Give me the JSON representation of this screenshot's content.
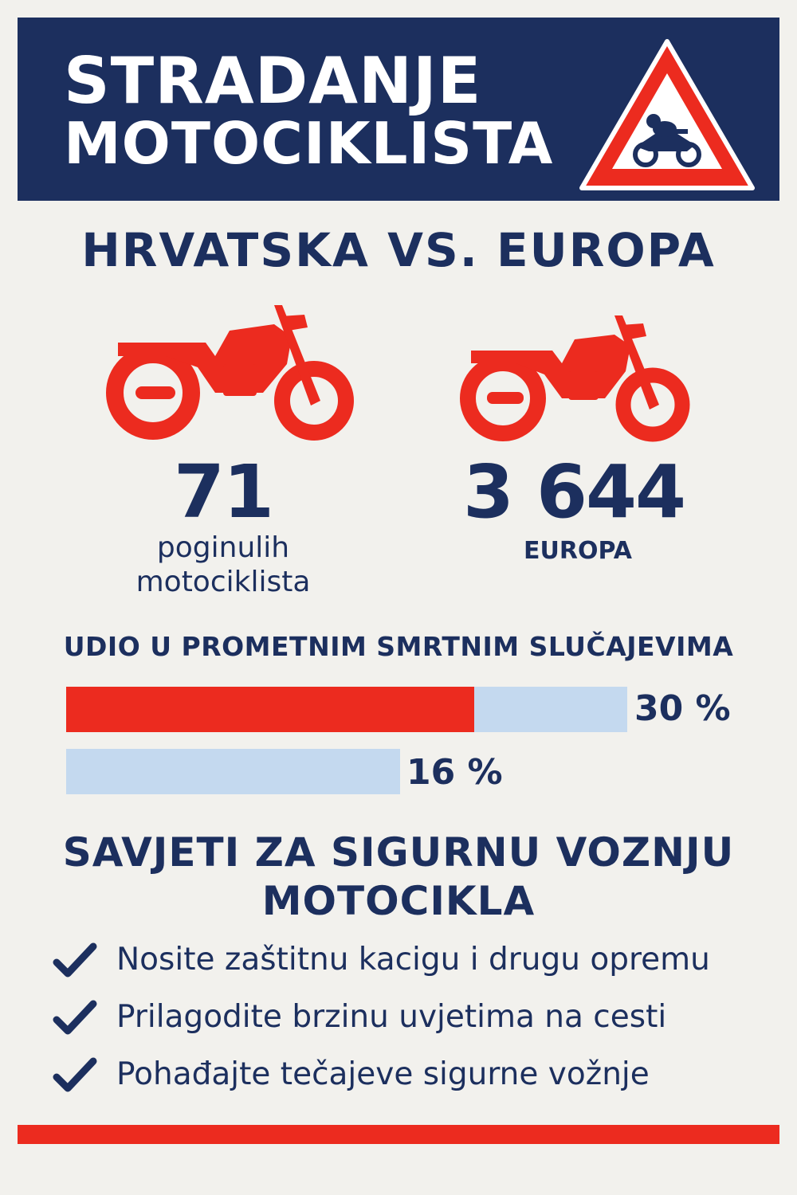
{
  "header": {
    "title_line1": "STRADANJE",
    "title_line2": "MOTOCIKLISTA",
    "sign_icon": "motorcycle-warning-sign-icon"
  },
  "comparison": {
    "title": "HRVATSKA VS. EUROPA",
    "croatia": {
      "icon": "motorcycle-icon",
      "number": "71",
      "caption_line1": "poginulih",
      "caption_line2": "motociklista"
    },
    "europe": {
      "icon": "motorcycle-icon",
      "number": "3 644",
      "caption": "EUROPA"
    }
  },
  "share": {
    "title": "UDIO U PROMETNIM SMRTNIM SLUČAJEVIMA",
    "bars": [
      {
        "label": "30 %",
        "value_percent": 30
      },
      {
        "label": "16 %",
        "value_percent": 16
      }
    ]
  },
  "tips": {
    "title_line1": "SAVJETI ZA SIGURNU VOZNJU",
    "title_line2": "MOTOCIKLA",
    "items": [
      {
        "icon": "checkmark-icon",
        "text": "Nosite zaštitnu kacigu i drugu opremu"
      },
      {
        "icon": "checkmark-icon",
        "text": "Prilagodite brzinu uvjetima na cesti"
      },
      {
        "icon": "checkmark-icon",
        "text": "Pohađajte tečajeve sigurne vožnje"
      }
    ]
  },
  "colors": {
    "navy": "#1c2f5e",
    "red": "#ec2b1f",
    "light_blue": "#c4d9ef",
    "background": "#f2f1ed"
  }
}
